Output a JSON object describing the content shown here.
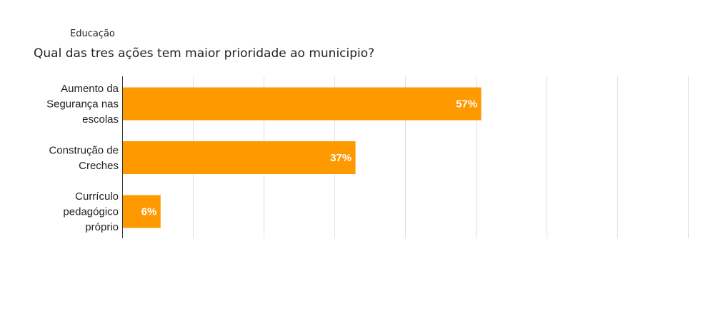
{
  "header": {
    "section": "Educação",
    "question": "Qual das tres ações tem maior prioridade ao municipio?"
  },
  "chart_data": {
    "type": "bar",
    "orientation": "horizontal",
    "categories": [
      [
        "Aumento da",
        "Segurança nas",
        "escolas"
      ],
      [
        "Construção de",
        "Creches"
      ],
      [
        "Currículo",
        "pedagógico",
        "próprio"
      ]
    ],
    "values": [
      57,
      37,
      6
    ],
    "value_labels": [
      "57%",
      "37%",
      "6%"
    ],
    "xlim": [
      0,
      90
    ],
    "grid": true,
    "bar_color": "#ff9900",
    "grid_color": "#e0e0e0",
    "axis_color": "#333333"
  }
}
